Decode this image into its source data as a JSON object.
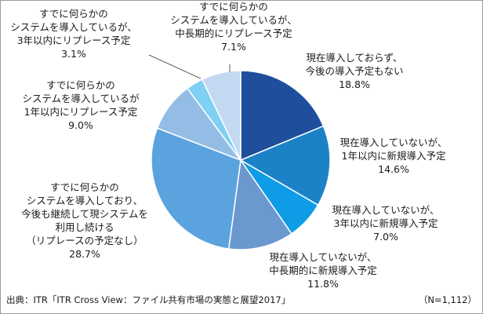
{
  "chart_data": {
    "type": "pie",
    "start_angle_deg": 0,
    "direction": "clockwise",
    "slices": [
      {
        "lines": [
          "現在導入しておらず、",
          "今後の導入予定もない"
        ],
        "value": 18.8,
        "value_label": "18.8%",
        "color": "#1f4f9c"
      },
      {
        "lines": [
          "現在導入していないが、",
          "1年以内に新規導入予定"
        ],
        "value": 14.6,
        "value_label": "14.6%",
        "color": "#1c82c8"
      },
      {
        "lines": [
          "現在導入していないが、",
          "3年以内に新規導入予定"
        ],
        "value": 7.0,
        "value_label": "7.0%",
        "color": "#0f9ce6"
      },
      {
        "lines": [
          "現在導入していないが、",
          "中長期的に新規導入予定"
        ],
        "value": 11.8,
        "value_label": "11.8%",
        "color": "#6b98cf"
      },
      {
        "lines": [
          "すでに何らかの",
          "システムを導入しており、",
          "今後も継続して現システムを",
          "利用し続ける",
          "（リプレースの予定なし）"
        ],
        "value": 28.7,
        "value_label": "28.7%",
        "color": "#5aa3de"
      },
      {
        "lines": [
          "すでに何らかの",
          "システムを導入しているが",
          "1年以内にリプレース予定"
        ],
        "value": 9.0,
        "value_label": "9.0%",
        "color": "#94bde6"
      },
      {
        "lines": [
          "すでに何らかの",
          "システムを導入しているが、",
          "3年以内にリプレース予定"
        ],
        "value": 3.1,
        "value_label": "3.1%",
        "color": "#7fd0f2"
      },
      {
        "lines": [
          "すでに何らかの",
          "システムを導入しているが、",
          "中長期的にリプレース予定"
        ],
        "value": 7.1,
        "value_label": "7.1%",
        "color": "#c3d9f1"
      }
    ]
  },
  "footer": {
    "source": "出典：ITR「ITR Cross View：ファイル共有市場の実態と展望2017」",
    "sample": "（N=1,112）"
  }
}
